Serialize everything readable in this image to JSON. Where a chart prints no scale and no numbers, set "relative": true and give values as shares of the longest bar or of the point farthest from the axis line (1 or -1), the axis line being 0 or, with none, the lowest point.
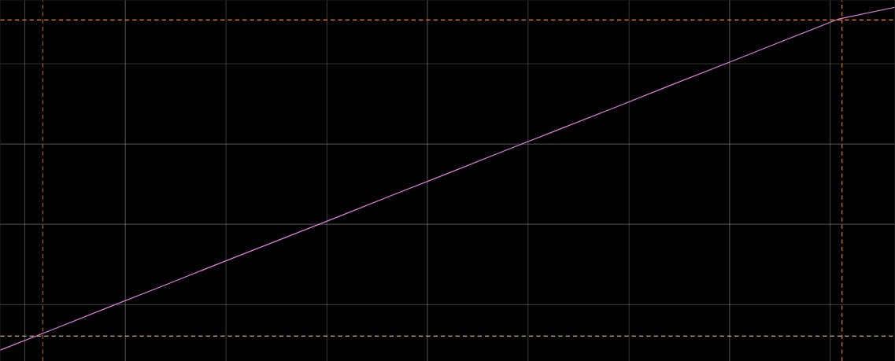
{
  "chart_data": {
    "type": "line",
    "relative": true,
    "grid": true,
    "categories": [
      null,
      null,
      null,
      null,
      null,
      null,
      null,
      null,
      null,
      null,
      null,
      null,
      null,
      null,
      null,
      null,
      null
    ],
    "series": [
      {
        "color": "#e07ee0",
        "values": [
          0,
          0.064,
          0.129,
          0.193,
          0.258,
          0.322,
          0.386,
          0.451,
          0.515,
          0.58,
          0.644,
          0.708,
          0.773,
          0.837,
          0.902,
          0.966,
          1
        ]
      }
    ],
    "ref_lines": [
      {
        "axis": "y",
        "value": 0.963,
        "color": "#ff8c1a",
        "line_style": "dashed"
      },
      {
        "axis": "y",
        "value": 0.041,
        "color": "#ffe0a0",
        "line_style": "dashed"
      }
    ]
  }
}
